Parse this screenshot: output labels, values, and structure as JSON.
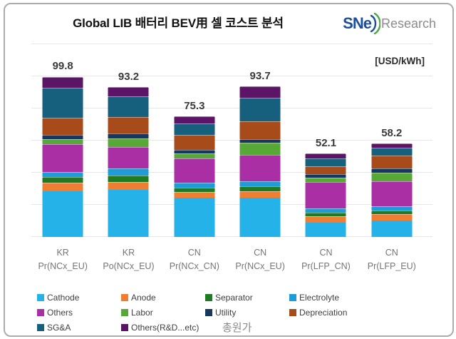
{
  "header": {
    "title": "Global LIB 배터리 BEV用 셀 코스트 분석"
  },
  "logo": {
    "sne": "SNe",
    "research": "Research",
    "blue": "#1B4F9E",
    "green": "#48A93C",
    "gray": "#8C8C8C"
  },
  "legend": {
    "total_label": "총원가"
  },
  "chart_data": {
    "type": "bar",
    "stacked": true,
    "title": "Global LIB 배터리 BEV用 셀 코스트 분석",
    "unit_label": "[USD/kWh]",
    "ylim": [
      0,
      120
    ],
    "gridline_step": 20,
    "grid": true,
    "legend_position": "bottom",
    "categories": [
      {
        "line1": "KR",
        "line2": "Pr(NCx_EU)"
      },
      {
        "line1": "KR",
        "line2": "Po(NCx_EU)"
      },
      {
        "line1": "CN",
        "line2": "Pr(NCx_CN)"
      },
      {
        "line1": "CN",
        "line2": "Pr(NCx_EU)"
      },
      {
        "line1": "CN",
        "line2": "Pr(LFP_CN)"
      },
      {
        "line1": "CN",
        "line2": "Pr(LFP_EU)"
      }
    ],
    "totals": [
      99.8,
      93.2,
      75.3,
      93.7,
      52.1,
      58.2
    ],
    "series": [
      {
        "name": "Cathode",
        "color": "#25B2E8",
        "values": [
          28.6,
          29.2,
          24.5,
          24.4,
          8.9,
          10.3
        ]
      },
      {
        "name": "Anode",
        "color": "#F07E32",
        "values": [
          5.0,
          5.2,
          3.3,
          4.0,
          4.0,
          4.0
        ]
      },
      {
        "name": "Separator",
        "color": "#1E7B24",
        "values": [
          3.7,
          3.7,
          3.0,
          3.2,
          2.2,
          2.2
        ]
      },
      {
        "name": "Electrolyte",
        "color": "#1E9CD8",
        "values": [
          3.2,
          4.4,
          3.0,
          3.0,
          2.9,
          2.7
        ]
      },
      {
        "name": "Others",
        "color": "#AA2FA5",
        "values": [
          17.4,
          13.7,
          15.3,
          16.6,
          16.2,
          15.7
        ]
      },
      {
        "name": "Labor",
        "color": "#58A838",
        "values": [
          3.2,
          5.2,
          3.0,
          7.4,
          2.9,
          5.2
        ]
      },
      {
        "name": "Utility",
        "color": "#17375E",
        "values": [
          2.4,
          3.1,
          2.2,
          2.5,
          2.0,
          2.7
        ]
      },
      {
        "name": "Depreciation",
        "color": "#A84B1A",
        "values": [
          10.6,
          10.2,
          9.2,
          11.1,
          4.8,
          8.1
        ]
      },
      {
        "name": "SG&A",
        "color": "#16607E",
        "values": [
          18.9,
          13.0,
          7.4,
          14.4,
          4.8,
          4.6
        ]
      },
      {
        "name": "Others(R&D...etc)",
        "color": "#5C1566",
        "values": [
          6.8,
          5.5,
          4.4,
          7.1,
          3.4,
          2.7
        ]
      }
    ]
  }
}
